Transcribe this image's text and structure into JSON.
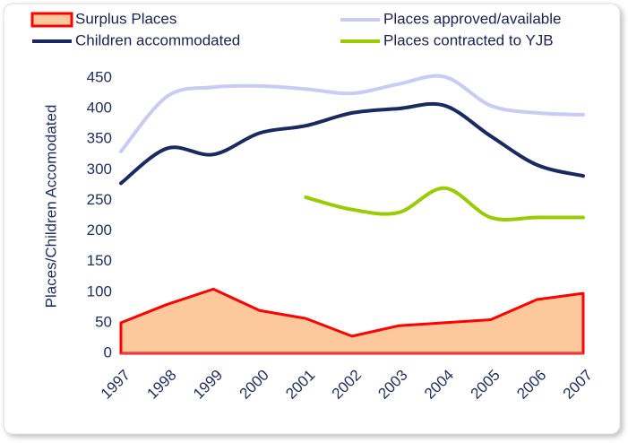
{
  "chart_data": {
    "type": "line",
    "y_label": "Places/Children Accomodated",
    "x": [
      1997,
      1998,
      1999,
      2000,
      2001,
      2002,
      2003,
      2004,
      2005,
      2006,
      2007
    ],
    "series": [
      {
        "name": "Surplus Places",
        "type": "area",
        "color": "#ff0000",
        "fill": "#fcc89c",
        "values": [
          50,
          80,
          105,
          70,
          57,
          28,
          45,
          50,
          55,
          88,
          98
        ]
      },
      {
        "name": "Places approved/available",
        "color": "#c8ccf2",
        "values": [
          330,
          420,
          435,
          437,
          432,
          425,
          440,
          452,
          405,
          393,
          390
        ]
      },
      {
        "name": "Children accommodated",
        "color": "#1a2a5e",
        "values": [
          278,
          335,
          325,
          360,
          372,
          393,
          400,
          405,
          355,
          308,
          290
        ]
      },
      {
        "name": "Places contracted to YJB",
        "color": "#99cc00",
        "values": [
          null,
          null,
          null,
          null,
          255,
          235,
          230,
          270,
          222,
          222,
          222
        ]
      }
    ],
    "xlim": [
      1997,
      2007
    ],
    "ylim": [
      0,
      450
    ],
    "yticks": [
      0,
      50,
      100,
      150,
      200,
      250,
      300,
      350,
      400,
      450
    ]
  }
}
